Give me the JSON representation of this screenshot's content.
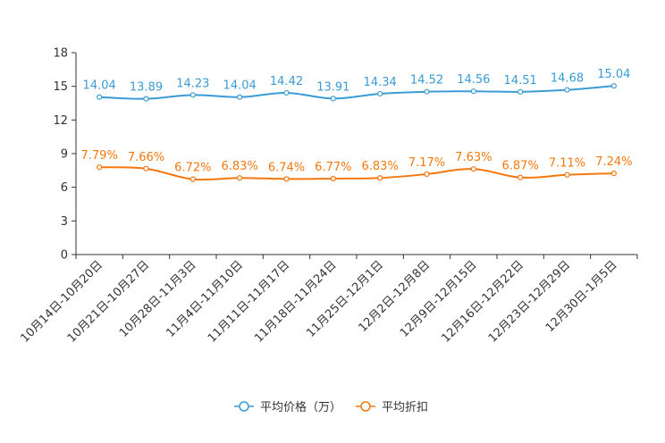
{
  "chart_data": {
    "type": "line",
    "title": "",
    "xlabel": "",
    "ylabel": "",
    "ylim": [
      0,
      18
    ],
    "yticks": [
      0,
      3,
      6,
      9,
      12,
      15,
      18
    ],
    "grid": false,
    "legend_position": "bottom-center",
    "categories": [
      "10月14日-10月20日",
      "10月21日-10月27日",
      "10月28日-11月3日",
      "11月4日-11月10日",
      "11月11日-11月17日",
      "11月18日-11月24日",
      "11月25日-12月1日",
      "12月2日-12月8日",
      "12月9日-12月15日",
      "12月16日-12月22日",
      "12月23日-12月29日",
      "12月30日-1月5日"
    ],
    "series": [
      {
        "name": "平均价格（万）",
        "color": "#3a9bd5",
        "values": [
          14.04,
          13.89,
          14.23,
          14.04,
          14.42,
          13.91,
          14.34,
          14.52,
          14.56,
          14.51,
          14.68,
          15.04
        ],
        "labels": [
          "14.04",
          "13.89",
          "14.23",
          "14.04",
          "14.42",
          "13.91",
          "14.34",
          "14.52",
          "14.56",
          "14.51",
          "14.68",
          "15.04"
        ]
      },
      {
        "name": "平均折扣",
        "color": "#f5780f",
        "values": [
          7.79,
          7.66,
          6.72,
          6.83,
          6.74,
          6.77,
          6.83,
          7.17,
          7.63,
          6.87,
          7.11,
          7.24
        ],
        "labels": [
          "7.79%",
          "7.66%",
          "6.72%",
          "6.83%",
          "6.74%",
          "6.77%",
          "6.83%",
          "7.17%",
          "7.63%",
          "6.87%",
          "7.11%",
          "7.24%"
        ]
      }
    ]
  }
}
